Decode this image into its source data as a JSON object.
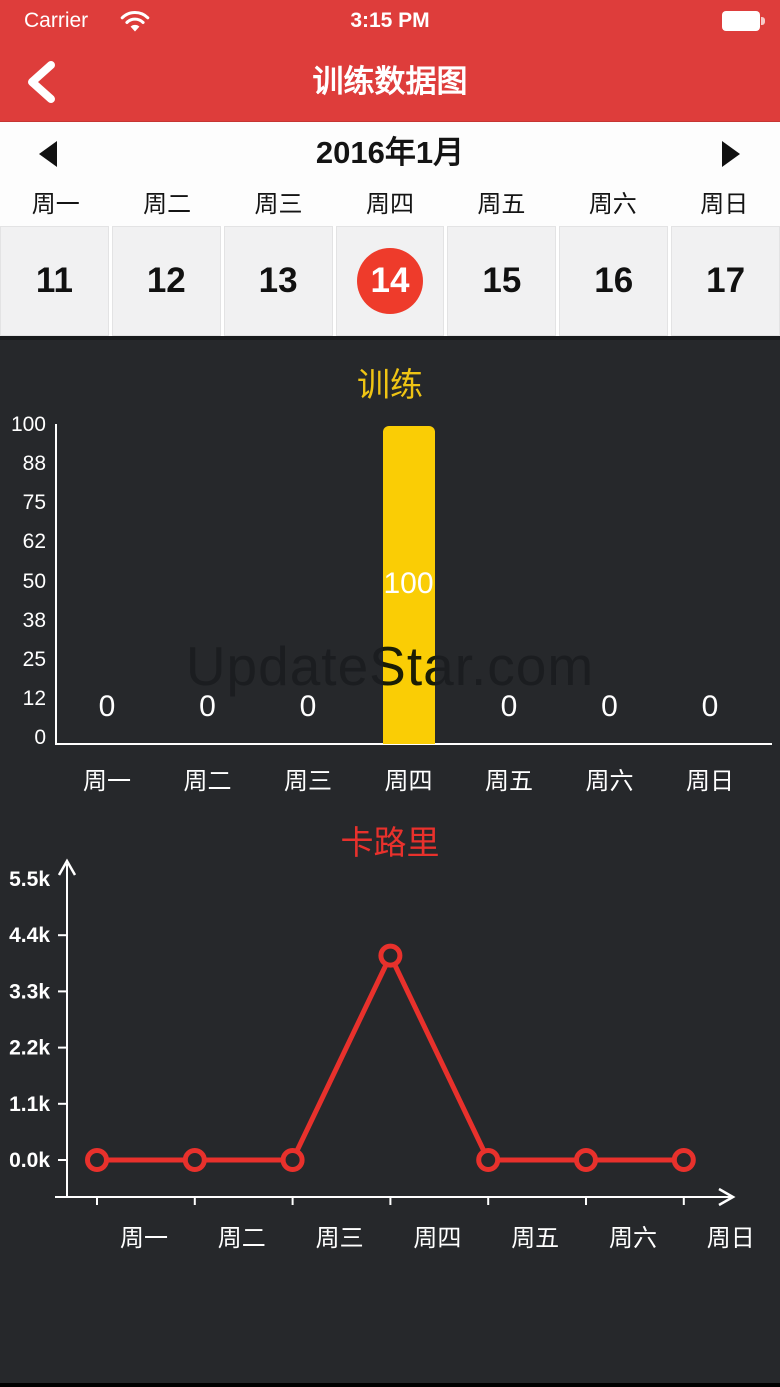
{
  "status_bar": {
    "carrier": "Carrier",
    "time": "3:15 PM"
  },
  "nav": {
    "title": "训练数据图"
  },
  "calendar": {
    "month_label": "2016年1月",
    "weekdays": [
      "周一",
      "周二",
      "周三",
      "周四",
      "周五",
      "周六",
      "周日"
    ],
    "dates": [
      "11",
      "12",
      "13",
      "14",
      "15",
      "16",
      "17"
    ],
    "selected_date": "14"
  },
  "watermark": "UpdateStar.com",
  "colors": {
    "header_red": "#DE3D3B",
    "selected_day_red": "#EE3B2B",
    "line_red": "#E8312C",
    "bar_yellow": "#FACD05",
    "title_yellow": "#EFC414",
    "chart_background": "#26282B"
  },
  "chart_data": [
    {
      "type": "bar",
      "title": "训练",
      "categories": [
        "周一",
        "周二",
        "周三",
        "周四",
        "周五",
        "周六",
        "周日"
      ],
      "values": [
        0,
        0,
        0,
        100,
        0,
        0,
        0
      ],
      "value_labels": [
        "0",
        "0",
        "0",
        "100",
        "0",
        "0",
        "0"
      ],
      "yticks": [
        "100",
        "88",
        "75",
        "62",
        "50",
        "38",
        "25",
        "12",
        "0"
      ],
      "ylim": [
        0,
        100
      ],
      "xlabel": "",
      "ylabel": "",
      "grid": false,
      "legend": "none",
      "bar_color": "#FACD05"
    },
    {
      "type": "line",
      "title": "卡路里",
      "categories": [
        "周一",
        "周二",
        "周三",
        "周四",
        "周五",
        "周六",
        "周日"
      ],
      "values": [
        0,
        0,
        0,
        4000,
        0,
        0,
        0
      ],
      "yticks": [
        "5.5k",
        "4.4k",
        "3.3k",
        "2.2k",
        "1.1k",
        "0.0k"
      ],
      "ytick_values": [
        5500,
        4400,
        3300,
        2200,
        1100,
        0
      ],
      "ylim": [
        0,
        5500
      ],
      "xlabel": "",
      "ylabel": "",
      "grid": false,
      "legend": "none",
      "line_color": "#E8312C",
      "marker": "open-circle"
    }
  ]
}
